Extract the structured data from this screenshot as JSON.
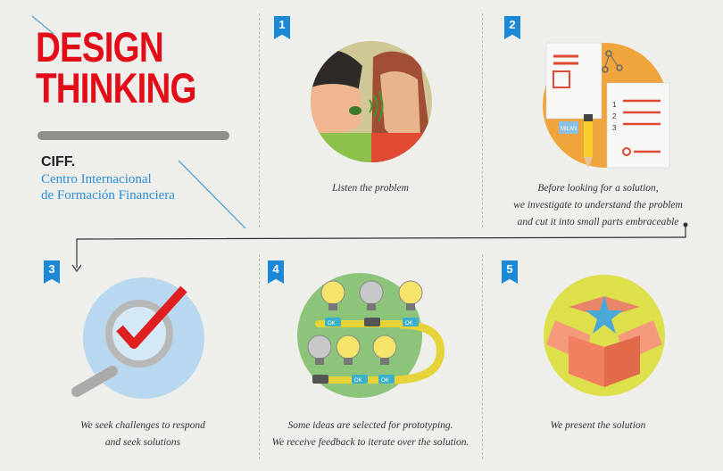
{
  "title": {
    "line1": "DESIGN",
    "line2": "THINKING"
  },
  "org": {
    "acronym": "CIFF.",
    "line1": "Centro Internacional",
    "line2": "de Formación Financiera"
  },
  "colors": {
    "accent": "#e30d1a",
    "badge": "#1c89d6",
    "text_blue": "#2a8fd6",
    "background": "#eeeeea"
  },
  "steps": [
    {
      "number": "1",
      "icon": "listening-faces-icon",
      "caption": [
        "Listen the problem"
      ]
    },
    {
      "number": "2",
      "icon": "documents-pencil-icon",
      "caption": [
        "Before looking for a solution,",
        "we investigate to understand the problem",
        "and cut it into small parts embraceable"
      ]
    },
    {
      "number": "3",
      "icon": "magnifier-check-icon",
      "caption": [
        "We seek challenges to respond",
        "and seek solutions"
      ]
    },
    {
      "number": "4",
      "icon": "lightbulbs-icon",
      "caption": [
        "Some ideas are selected for prototyping.",
        "We receive feedback to iterate over the solution."
      ]
    },
    {
      "number": "5",
      "icon": "open-box-star-icon",
      "caption": [
        "We present the solution"
      ]
    }
  ],
  "illustration_text": {
    "doc_numbers": [
      "1",
      "2",
      "3"
    ],
    "eraser_label": "MILAN",
    "ok_label": "OK"
  }
}
